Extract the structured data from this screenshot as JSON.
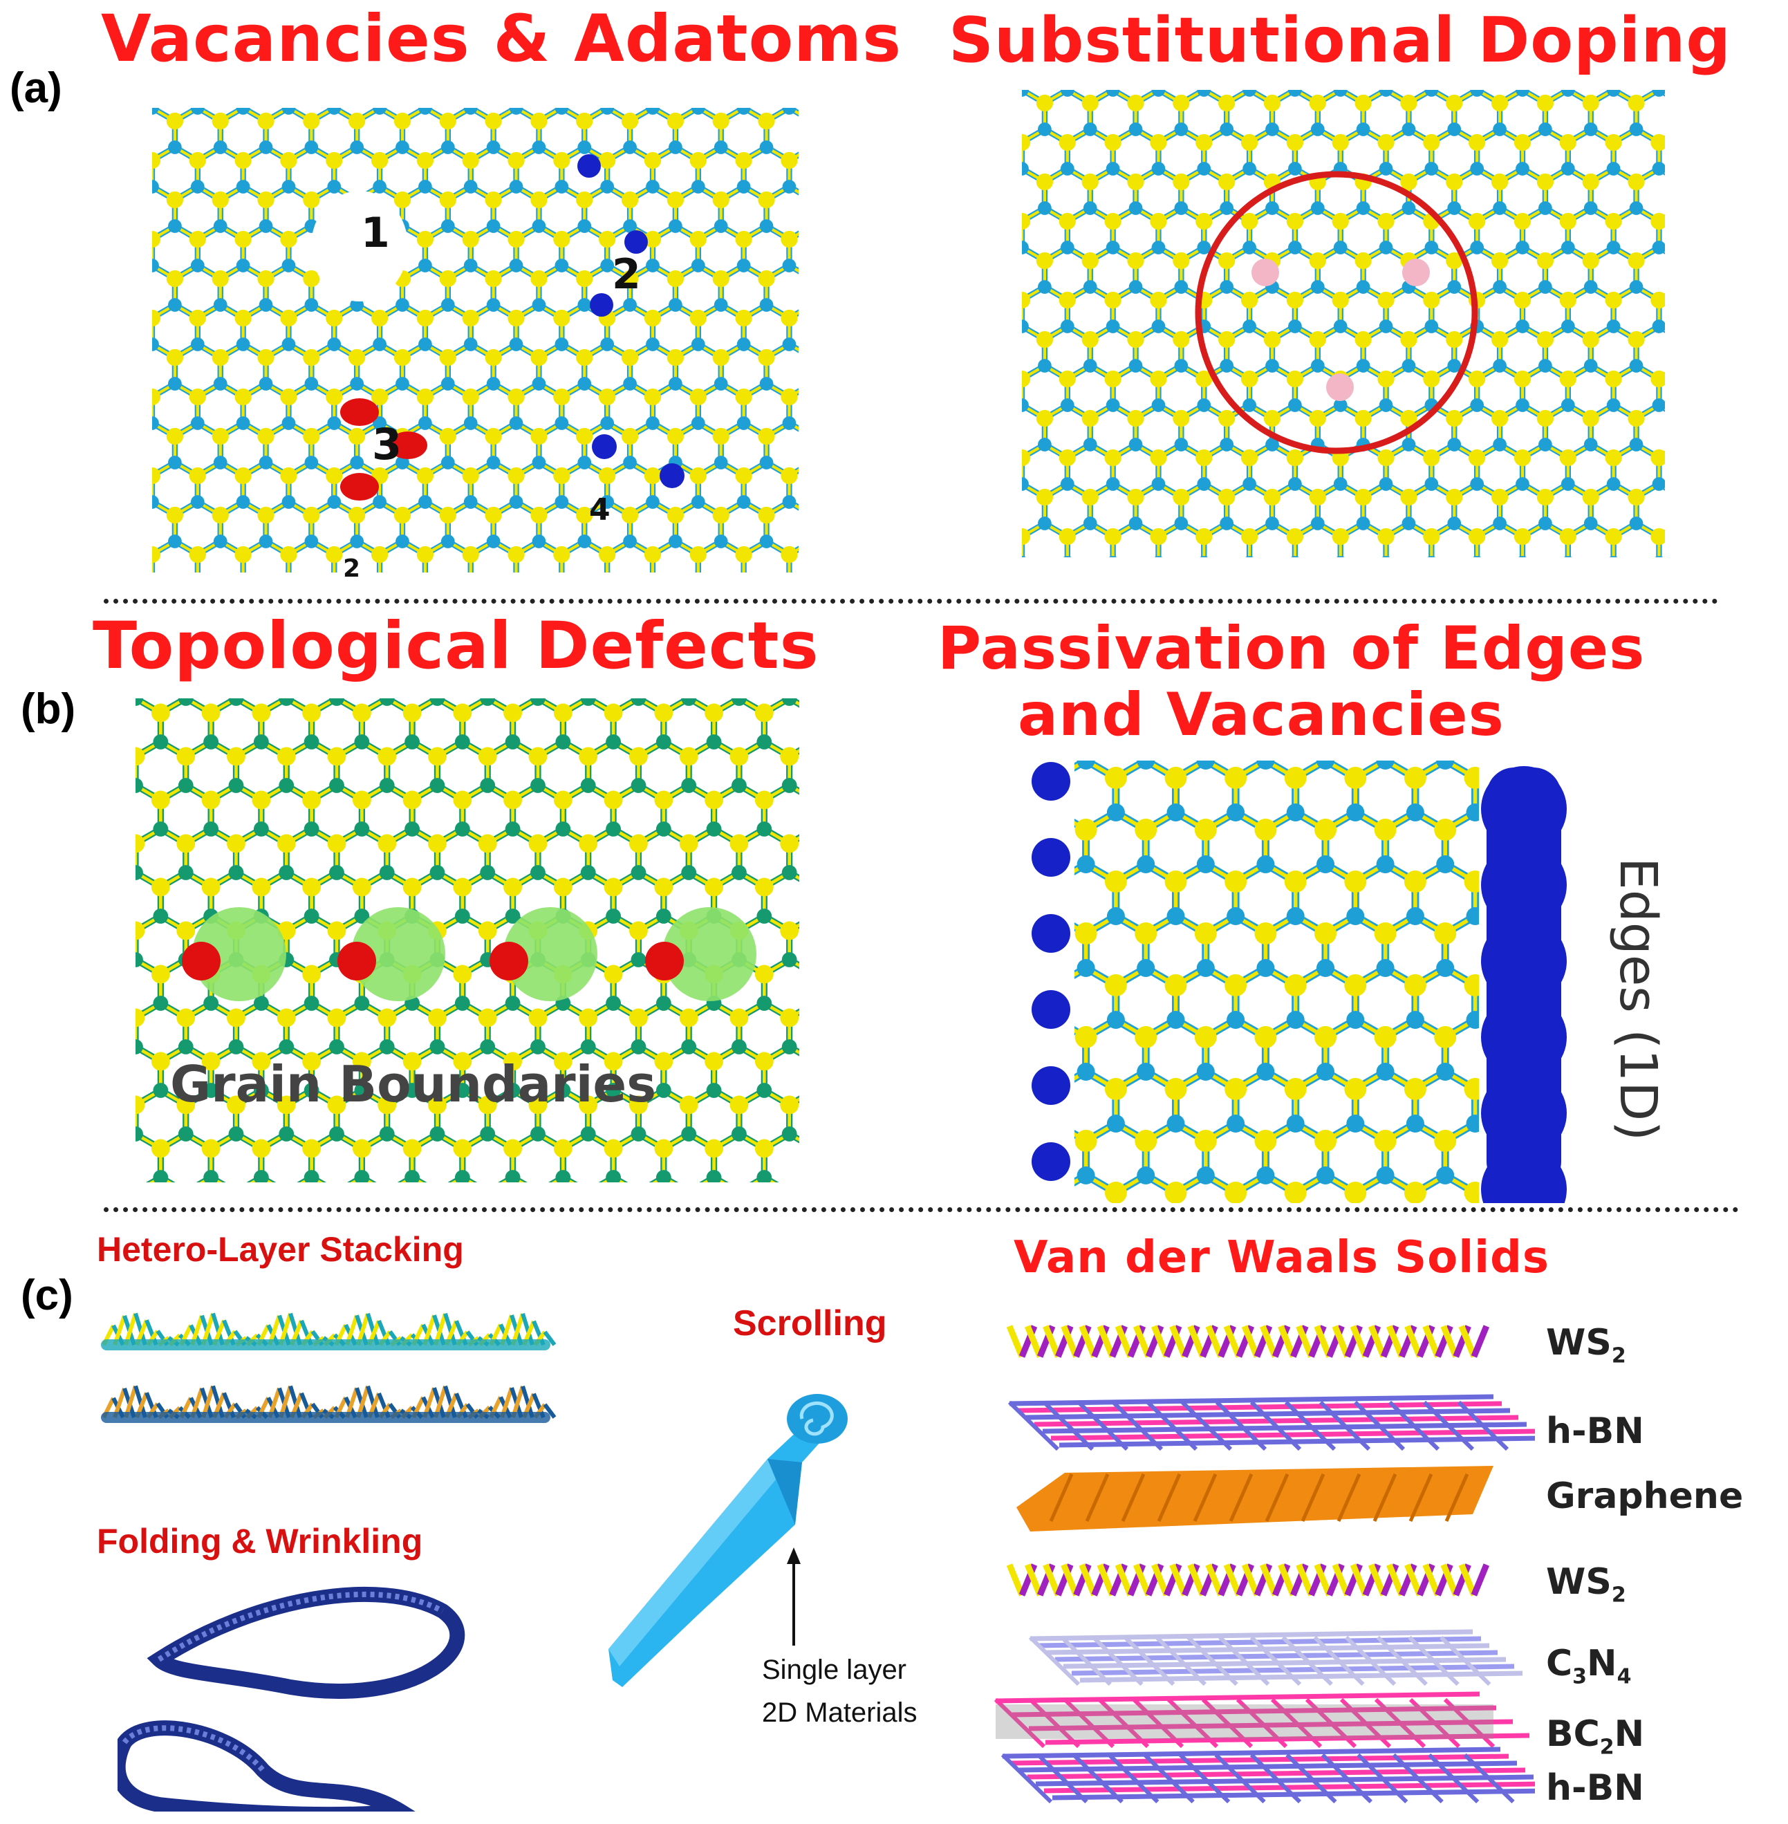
{
  "panels": {
    "a": {
      "label": "(a)",
      "left_title": "Vacancies & Adatoms",
      "right_title": "Substitutional Doping",
      "defect_numbers": [
        "1",
        "2",
        "3",
        "4",
        "2"
      ]
    },
    "b": {
      "label": "(b)",
      "left_title": "Topological Defects",
      "right_title_line1": "Passivation of Edges",
      "right_title_line2": "and Vacancies",
      "grain_label": "Grain Boundaries",
      "edge_label": "Edges (1D)"
    },
    "c": {
      "label": "(c)",
      "hetero_title": "Hetero-Layer Stacking",
      "folding_title": "Folding & Wrinkling",
      "scrolling_title": "Scrolling",
      "scroll_note_line1": "Single layer",
      "scroll_note_line2": "2D Materials",
      "vdw_title": "Van der Waals Solids",
      "layers": [
        {
          "main": "WS",
          "sub1": "2",
          "mid": "",
          "sub2": ""
        },
        {
          "main": "h-BN",
          "sub1": "",
          "mid": "",
          "sub2": ""
        },
        {
          "main": "Graphene",
          "sub1": "",
          "mid": "",
          "sub2": ""
        },
        {
          "main": "WS",
          "sub1": "2",
          "mid": "",
          "sub2": ""
        },
        {
          "main": "C",
          "sub1": "3",
          "mid": "N",
          "sub2": "4"
        },
        {
          "main": "BC",
          "sub1": "2",
          "mid": "N",
          "sub2": ""
        },
        {
          "main": "h-BN",
          "sub1": "",
          "mid": "",
          "sub2": ""
        }
      ]
    }
  },
  "colors": {
    "title_red": "#ff1a1a",
    "sulfur": "#f2e600",
    "metal": "#1ea0d6",
    "adatom_blue": "#1622c8",
    "adatom_red": "#e01010",
    "dopant_pink": "#f3b6c6",
    "grain_green": "#8ee26a",
    "tm_green": "#149a6e",
    "vdw_purple": "#a020c0",
    "hbn_pink": "#ff3aa8",
    "hbn_blue": "#6a6adc",
    "graphene_orange": "#f08a10",
    "scroll_blue": "#2ab4f0"
  },
  "icons": [
    "lattice-icon",
    "scroll-icon",
    "layer-stack-icon"
  ]
}
